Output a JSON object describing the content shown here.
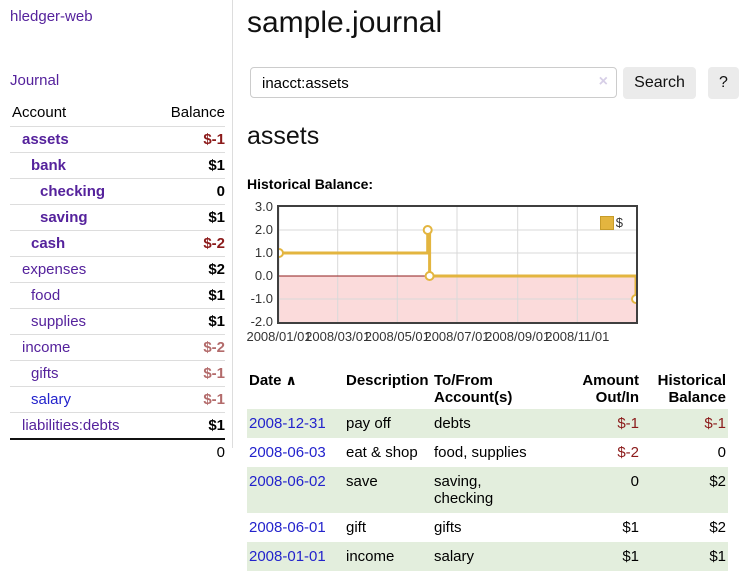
{
  "app": {
    "title": "hledger-web",
    "nav_journal": "Journal"
  },
  "sidebar": {
    "table_headers": {
      "account": "Account",
      "balance": "Balance"
    },
    "accounts": [
      {
        "name": "assets",
        "balance": "$-1",
        "level": 1,
        "bold": true,
        "balance_style": "negative"
      },
      {
        "name": "bank",
        "balance": "$1",
        "level": 2,
        "bold": true,
        "balance_style": "normal"
      },
      {
        "name": "checking",
        "balance": "0",
        "level": 3,
        "bold": true,
        "balance_style": "normal"
      },
      {
        "name": "saving",
        "balance": "$1",
        "level": 3,
        "bold": true,
        "balance_style": "normal"
      },
      {
        "name": "cash",
        "balance": "$-2",
        "level": 2,
        "bold": true,
        "balance_style": "negative"
      },
      {
        "name": "expenses",
        "balance": "$2",
        "level": 1,
        "bold": false,
        "balance_style": "normal"
      },
      {
        "name": "food",
        "balance": "$1",
        "level": 2,
        "bold": false,
        "balance_style": "normal"
      },
      {
        "name": "supplies",
        "balance": "$1",
        "level": 2,
        "bold": false,
        "balance_style": "normal"
      },
      {
        "name": "income",
        "balance": "$-2",
        "level": 1,
        "bold": false,
        "balance_style": "negative-soft"
      },
      {
        "name": "gifts",
        "balance": "$-1",
        "level": 2,
        "bold": false,
        "balance_style": "negative-soft"
      },
      {
        "name": "salary",
        "balance": "$-1",
        "level": 2,
        "bold": false,
        "balance_style": "negative-soft",
        "unvisited": true
      },
      {
        "name": "liabilities:debts",
        "balance": "$1",
        "level": 1,
        "bold": false,
        "balance_style": "normal"
      }
    ],
    "total": "0"
  },
  "header": {
    "title": "sample.journal"
  },
  "search": {
    "value": "inacct:assets",
    "clear_icon": "×",
    "button": "Search",
    "help_button": "?"
  },
  "account_page": {
    "heading": "assets",
    "chart_title": "Historical Balance:"
  },
  "chart_data": {
    "type": "line",
    "title": "Historical Balance:",
    "step": true,
    "x_range": [
      "2008-01-01",
      "2008-12-31"
    ],
    "ylim": [
      -2,
      3
    ],
    "yticks": [
      3.0,
      2.0,
      1.0,
      0.0,
      -1.0,
      -2.0
    ],
    "xticks": [
      {
        "label": "2008/01/01",
        "date": "2008-01-01"
      },
      {
        "label": "2008/03/01",
        "date": "2008-03-01"
      },
      {
        "label": "2008/05/01",
        "date": "2008-05-01"
      },
      {
        "label": "2008/07/01",
        "date": "2008-07-01"
      },
      {
        "label": "2008/09/01",
        "date": "2008-09-01"
      },
      {
        "label": "2008/11/01",
        "date": "2008-11-01"
      }
    ],
    "series": [
      {
        "name": "$",
        "color": "#e3b53f",
        "points": [
          {
            "date": "2008-01-01",
            "value": 1
          },
          {
            "date": "2008-06-01",
            "value": 2
          },
          {
            "date": "2008-06-03",
            "value": 0
          },
          {
            "date": "2008-12-31",
            "value": -1
          }
        ]
      }
    ],
    "grid_color": "#d9d9d9",
    "zero_line_color": "#8f1e1e",
    "negative_region_color": "#fbdbdb",
    "legend_position": "top-right"
  },
  "register": {
    "headers": {
      "date": "Date",
      "description": "Description",
      "accounts": "To/From Account(s)",
      "amount": "Amount Out/In",
      "balance": "Historical Balance"
    },
    "sort_icon": "∧",
    "rows": [
      {
        "date": "2008-12-31",
        "description": "pay off",
        "accounts": "debts",
        "amount": "$-1",
        "amount_negative": true,
        "balance": "$-1",
        "balance_negative": true
      },
      {
        "date": "2008-06-03",
        "description": "eat & shop",
        "accounts": "food, supplies",
        "amount": "$-2",
        "amount_negative": true,
        "balance": "0",
        "balance_negative": false
      },
      {
        "date": "2008-06-02",
        "description": "save",
        "accounts": "saving, checking",
        "amount": "0",
        "amount_negative": false,
        "balance": "$2",
        "balance_negative": false
      },
      {
        "date": "2008-06-01",
        "description": "gift",
        "accounts": "gifts",
        "amount": "$1",
        "amount_negative": false,
        "balance": "$2",
        "balance_negative": false
      },
      {
        "date": "2008-01-01",
        "description": "income",
        "accounts": "salary",
        "amount": "$1",
        "amount_negative": false,
        "balance": "$1",
        "balance_negative": false
      }
    ]
  },
  "colors": {
    "link_visited_purple": "#55229c",
    "link_unvisited_blue": "#2323cc",
    "negative_amount": "#8b1a1a",
    "negative_amount_soft": "#b36b6b",
    "row_stripe_green": "#e3eedd",
    "chart_line_gold": "#e3b53f",
    "chart_negative_pink": "#fbdbdb"
  }
}
